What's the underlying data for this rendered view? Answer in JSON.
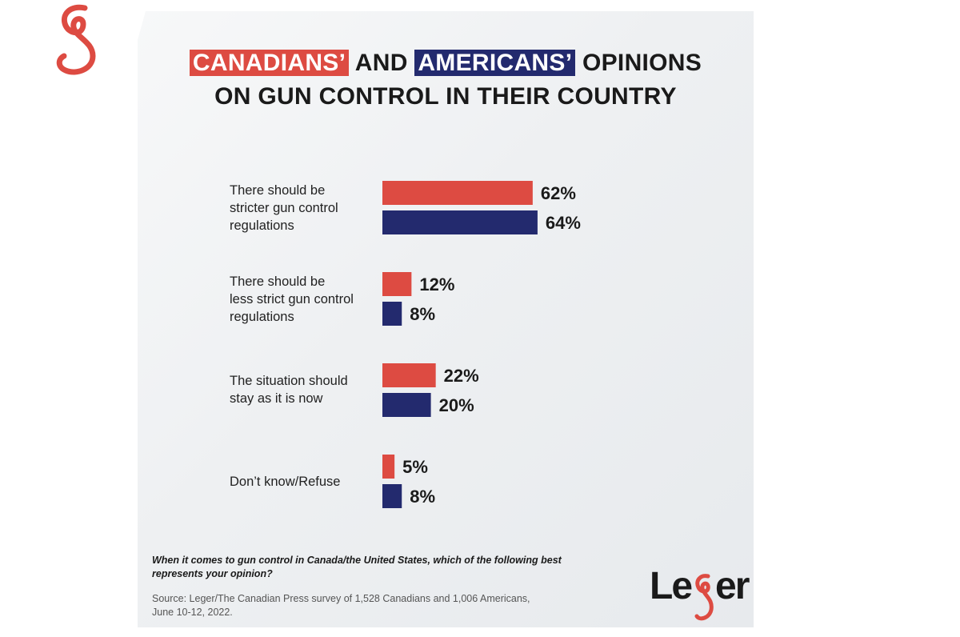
{
  "title": {
    "part1": "CANADIANS’",
    "part2": "AND",
    "part3": "AMERICANS’",
    "part4": "OPINIONS",
    "line2": "ON GUN CONTROL IN THEIR COUNTRY"
  },
  "colors": {
    "canada": "#dd4b42",
    "usa": "#232a6e",
    "text": "#1a1a1a"
  },
  "chart_data": {
    "type": "bar",
    "orientation": "horizontal",
    "title": "CANADIANS’ AND AMERICANS’ OPINIONS ON GUN CONTROL IN THEIR COUNTRY",
    "categories": [
      [
        "There should be",
        "stricter gun control",
        "regulations"
      ],
      [
        "There should be",
        "less strict gun control",
        "regulations"
      ],
      [
        "The situation should",
        "stay as it is now"
      ],
      [
        "Don’t know/Refuse"
      ]
    ],
    "series": [
      {
        "name": "Canadians",
        "color": "#dd4b42",
        "values": [
          62,
          12,
          22,
          5
        ]
      },
      {
        "name": "Americans",
        "color": "#232a6e",
        "values": [
          64,
          8,
          20,
          8
        ]
      }
    ],
    "value_suffix": "%",
    "xlim": [
      0,
      100
    ],
    "grid": false
  },
  "footer": {
    "question": "When it comes to gun control in Canada/the United States, which of the following best represents your opinion?",
    "source_line1": "Source: Leger/The Canadian Press survey of 1,528 Canadians and 1,006 Americans,",
    "source_line2": "June 10-12, 2022."
  },
  "brand": {
    "prefix": "Le",
    "mark_icon": "leger-g-icon",
    "suffix": "er"
  },
  "corner_logo_icon": "leger-g-icon"
}
